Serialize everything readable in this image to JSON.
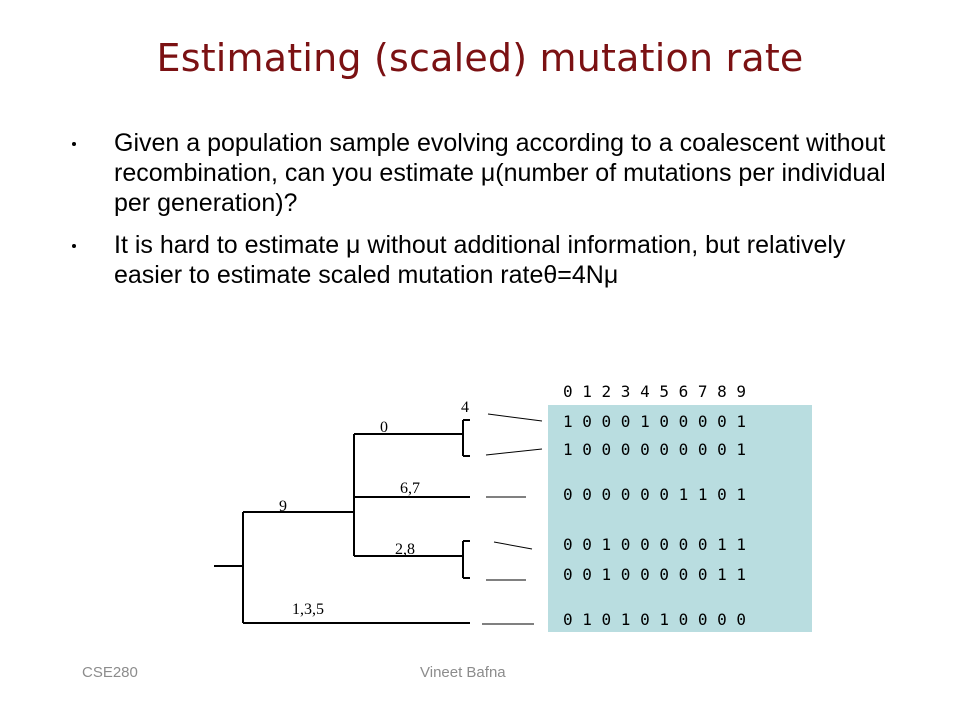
{
  "slide": {
    "title": "Estimating (scaled) mutation rate",
    "bullets": [
      "Given a population sample evolving according to a coalescent without recombination, can you estimate μ(number of mutations per individual per generation)?",
      "It is hard to estimate μ without additional information, but relatively easier to estimate scaled mutation rateθ=4Nμ"
    ]
  },
  "diagram": {
    "column_header": "0 1 2 3 4 5 6 7 8 9",
    "rows": [
      "1 0 0 0 1 0 0 0 0 1",
      "1 0 0 0 0 0 0 0 0 1",
      "0 0 0 0 0 0 1 1 0 1",
      "0 0 1 0 0 0 0 0 1 1",
      "0 0 1 0 0 0 0 0 1 1",
      "0 1 0 1 0 1 0 0 0 0"
    ],
    "branch_labels": {
      "l4": "4",
      "l0": "0",
      "l67": "6,7",
      "l9": "9",
      "l28": "2,8",
      "l135": "1,3,5"
    },
    "matrix_color": "#b9dde0"
  },
  "footer": {
    "left": "CSE280",
    "center": "Vineet Bafna"
  }
}
